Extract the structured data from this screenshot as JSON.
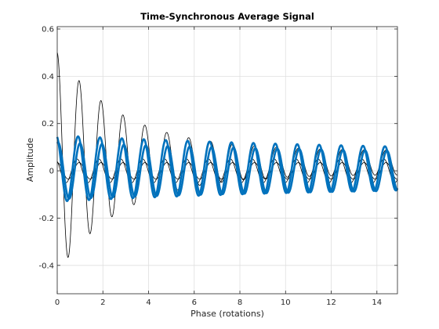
{
  "chart_data": {
    "type": "line",
    "title": "Time-Synchronous Average Signal",
    "xlabel": "Phase (rotations)",
    "ylabel": "Amplitude",
    "xlim": [
      0,
      14.9
    ],
    "ylim": [
      -0.52,
      0.61
    ],
    "xticks": [
      0,
      2,
      4,
      6,
      8,
      10,
      12,
      14
    ],
    "yticks": [
      -0.4,
      -0.2,
      0,
      0.2,
      0.4,
      0.6
    ],
    "grid": true,
    "legend": "none",
    "series": [
      {
        "color": "#000000",
        "line_width": 0.8,
        "values": {
          "offset": 0.035,
          "amplitude": 0.465,
          "decay": 0.35,
          "floor": 0.05,
          "period": 0.96,
          "phase_rotations": 0,
          "x_start": 0,
          "x_end": 14.9
        }
      },
      {
        "color": "#000000",
        "line_width": 0.8,
        "values": {
          "offset": 0.0,
          "amplitude": 0.035,
          "decay": 0.0,
          "floor": 0.0,
          "period": 0.96,
          "phase_rotations": 0,
          "x_start": 0,
          "x_end": 14.9
        }
      },
      {
        "color": "#000000",
        "line_width": 0.8,
        "values": {
          "offset": 0.0,
          "amplitude": 0.05,
          "decay": 0.0,
          "floor": 0.0,
          "period": 0.96,
          "phase_rotations": 0.1,
          "x_start": 0,
          "x_end": 14.9
        }
      },
      {
        "color": "#0072BD",
        "line_width": 2.6,
        "values": {
          "offset": 0.01,
          "amplitude": 0.14,
          "decay": 0.06,
          "floor": 0.06,
          "period": 0.96,
          "phase_rotations": 0.05,
          "x_start": 0,
          "x_end": 14.9
        }
      },
      {
        "color": "#0072BD",
        "line_width": 2.6,
        "values": {
          "offset": 0.0,
          "amplitude": 0.12,
          "decay": 0.06,
          "floor": 0.06,
          "period": 0.96,
          "phase_rotations": -0.04,
          "x_start": 0,
          "x_end": 14.9
        }
      }
    ]
  }
}
